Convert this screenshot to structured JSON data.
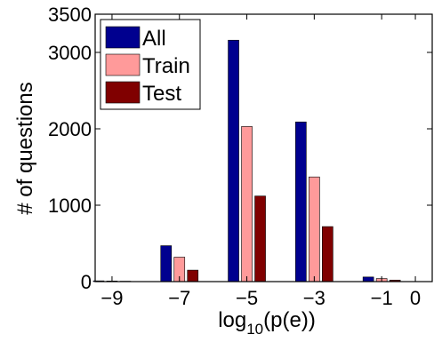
{
  "chart_data": {
    "type": "bar",
    "x": [
      "−9",
      "−7",
      "−5",
      "−3",
      "−1",
      "0"
    ],
    "x_values": [
      -9,
      -7,
      -5,
      -3,
      -1,
      0
    ],
    "series": [
      {
        "name": "All",
        "color": "#00008f",
        "values": [
          10,
          470,
          3160,
          2090,
          60,
          0
        ]
      },
      {
        "name": "Train",
        "color": "#ff9a9a",
        "values": [
          8,
          320,
          2030,
          1370,
          40,
          0
        ]
      },
      {
        "name": "Test",
        "color": "#800000",
        "values": [
          5,
          150,
          1120,
          720,
          20,
          0
        ]
      }
    ],
    "xlabel_main": "log",
    "xlabel_sub": "10",
    "xlabel_rest": "(p(e))",
    "ylabel": "# of questions",
    "y_ticks": [
      0,
      1000,
      2000,
      3000,
      3500
    ],
    "ylim": [
      0,
      3500
    ],
    "xlim": [
      -9.5,
      0.5
    ],
    "legend_position": "top-left",
    "grid": false
  }
}
